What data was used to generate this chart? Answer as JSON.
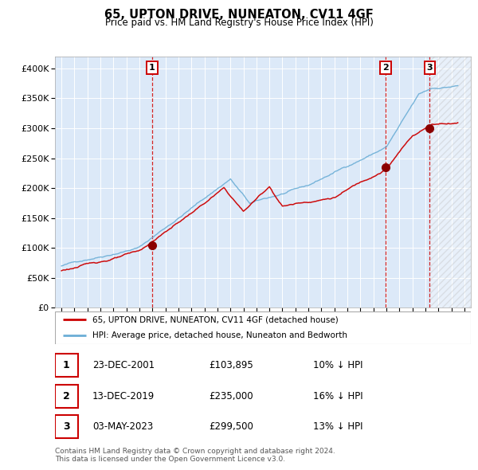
{
  "title": "65, UPTON DRIVE, NUNEATON, CV11 4GF",
  "subtitle": "Price paid vs. HM Land Registry's House Price Index (HPI)",
  "hpi_label": "HPI: Average price, detached house, Nuneaton and Bedworth",
  "price_label": "65, UPTON DRIVE, NUNEATON, CV11 4GF (detached house)",
  "transactions": [
    {
      "num": 1,
      "date": "23-DEC-2001",
      "price": 103895,
      "year": 2001.97,
      "hpi_pct": "10% ↓ HPI"
    },
    {
      "num": 2,
      "date": "13-DEC-2019",
      "price": 235000,
      "year": 2019.95,
      "hpi_pct": "16% ↓ HPI"
    },
    {
      "num": 3,
      "date": "03-MAY-2023",
      "price": 299500,
      "year": 2023.34,
      "hpi_pct": "13% ↓ HPI"
    }
  ],
  "ylim": [
    0,
    420000
  ],
  "yticks": [
    0,
    50000,
    100000,
    150000,
    200000,
    250000,
    300000,
    350000,
    400000
  ],
  "ytick_labels": [
    "£0",
    "£50K",
    "£100K",
    "£150K",
    "£200K",
    "£250K",
    "£300K",
    "£350K",
    "£400K"
  ],
  "xlim_start": 1994.5,
  "xlim_end": 2026.5,
  "xticks": [
    1995,
    1996,
    1997,
    1998,
    1999,
    2000,
    2001,
    2002,
    2003,
    2004,
    2005,
    2006,
    2007,
    2008,
    2009,
    2010,
    2011,
    2012,
    2013,
    2014,
    2015,
    2016,
    2017,
    2018,
    2019,
    2020,
    2021,
    2022,
    2023,
    2024,
    2025,
    2026
  ],
  "background_color": "#dce9f8",
  "hatch_region_start": 2023.34,
  "hpi_color": "#6baed6",
  "price_color": "#cc0000",
  "dot_color": "#8b0000",
  "vline_color": "#cc0000",
  "grid_color": "#ffffff",
  "footer_text": "Contains HM Land Registry data © Crown copyright and database right 2024.\nThis data is licensed under the Open Government Licence v3.0."
}
